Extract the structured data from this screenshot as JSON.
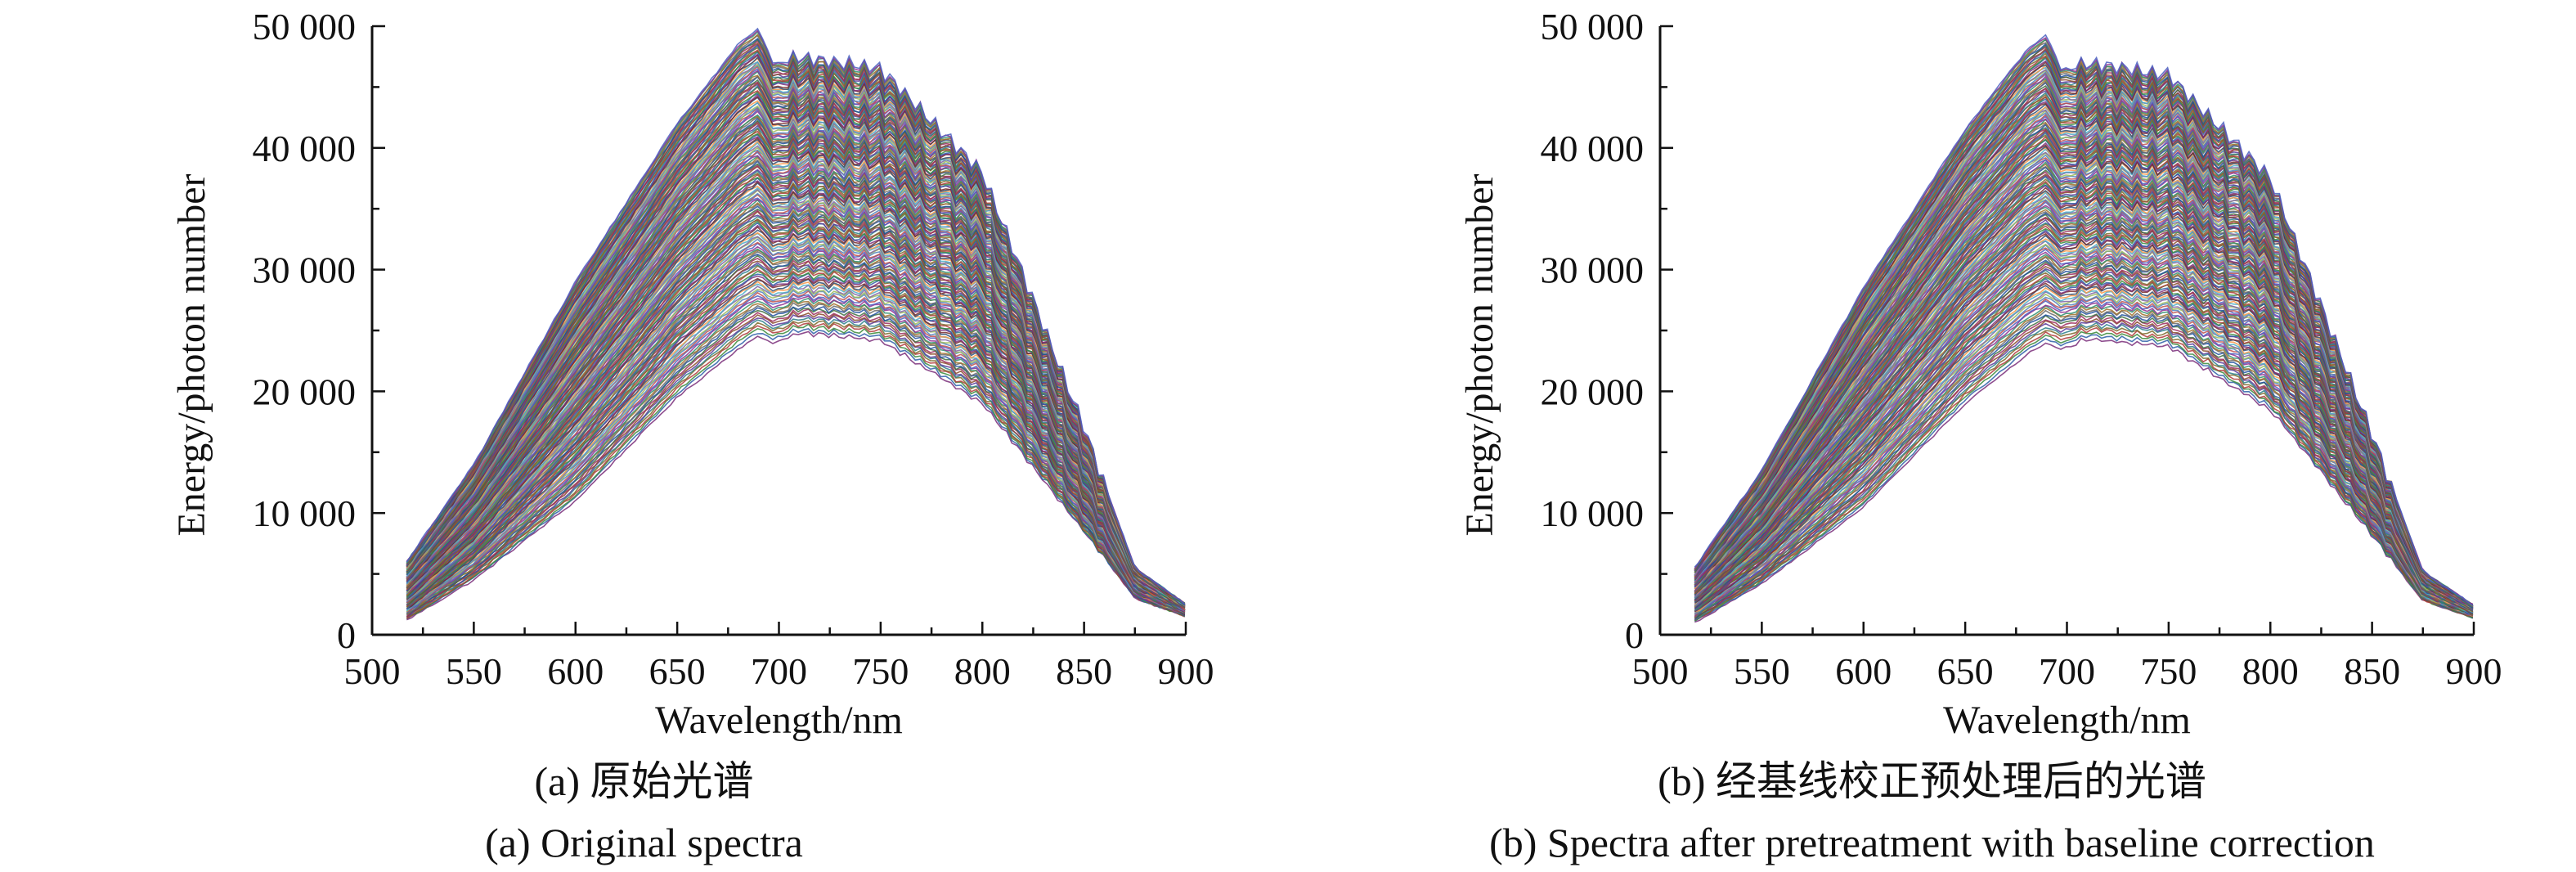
{
  "figure": {
    "panels": [
      {
        "caption_zh": "(a) 原始光谱",
        "caption_en": "(a) Original spectra"
      },
      {
        "caption_zh": "(b) 经基线校正预处理后的光谱",
        "caption_en": "(b) Spectra after pretreatment with baseline correction"
      }
    ]
  },
  "chart_data": [
    {
      "type": "line",
      "title": "(a) Original spectra",
      "xlabel": "Wavelength/nm",
      "ylabel": "Energy/photon number",
      "xlim": [
        500,
        900
      ],
      "ylim": [
        0,
        50000
      ],
      "xticks": [
        500,
        550,
        600,
        650,
        700,
        750,
        800,
        850,
        900
      ],
      "xtick_labels": [
        "500",
        "550",
        "600",
        "650",
        "700",
        "750",
        "800",
        "850",
        "900"
      ],
      "yticks": [
        0,
        10000,
        20000,
        30000,
        40000,
        50000
      ],
      "ytick_labels": [
        "0",
        "10 000",
        "20 000",
        "30 000",
        "40 000",
        "50 000"
      ],
      "grid": false,
      "legend": "none",
      "series_count_approx": 160,
      "envelope": {
        "x": [
          517,
          550,
          600,
          650,
          680,
          690,
          697,
          710,
          750,
          800,
          850,
          875,
          900
        ],
        "upper": [
          6000,
          14000,
          29000,
          42000,
          48500,
          49800,
          47000,
          47500,
          46500,
          38000,
          17000,
          5500,
          2500
        ],
        "lower": [
          1200,
          4500,
          11000,
          19500,
          23500,
          24500,
          24000,
          24800,
          24200,
          19000,
          8500,
          3000,
          1500
        ]
      },
      "series": [
        {
          "x": [
            517,
            550,
            600,
            650,
            680,
            690,
            697,
            710,
            750,
            800,
            850,
            875,
            900
          ],
          "y": [
            6000,
            14000,
            29000,
            42000,
            48500,
            49800,
            47000,
            47500,
            46500,
            38000,
            17000,
            5500,
            2500
          ]
        },
        {
          "x": [
            517,
            550,
            600,
            650,
            680,
            690,
            697,
            710,
            750,
            800,
            850,
            875,
            900
          ],
          "y": [
            3500,
            9500,
            21000,
            33000,
            39000,
            40500,
            38500,
            39000,
            38000,
            31000,
            14000,
            4500,
            2000
          ]
        },
        {
          "x": [
            517,
            550,
            600,
            650,
            680,
            690,
            697,
            710,
            750,
            800,
            850,
            875,
            900
          ],
          "y": [
            1200,
            4500,
            11000,
            19500,
            23500,
            24500,
            24000,
            24800,
            24200,
            19000,
            8500,
            3000,
            1500
          ]
        }
      ]
    },
    {
      "type": "line",
      "title": "(b) Spectra after pretreatment with baseline correction",
      "xlabel": "Wavelength/nm",
      "ylabel": "Energy/photon number",
      "xlim": [
        500,
        900
      ],
      "ylim": [
        0,
        50000
      ],
      "xticks": [
        500,
        550,
        600,
        650,
        700,
        750,
        800,
        850,
        900
      ],
      "xtick_labels": [
        "500",
        "550",
        "600",
        "650",
        "700",
        "750",
        "800",
        "850",
        "900"
      ],
      "yticks": [
        0,
        10000,
        20000,
        30000,
        40000,
        50000
      ],
      "ytick_labels": [
        "0",
        "10 000",
        "20 000",
        "30 000",
        "40 000",
        "50 000"
      ],
      "grid": false,
      "legend": "none",
      "series_count_approx": 160,
      "envelope": {
        "x": [
          517,
          550,
          600,
          650,
          680,
          690,
          697,
          710,
          750,
          800,
          850,
          875,
          900
        ],
        "upper": [
          5500,
          13500,
          28500,
          41500,
          48000,
          49300,
          46500,
          47000,
          46000,
          37500,
          16500,
          5200,
          2400
        ],
        "lower": [
          1000,
          4200,
          10500,
          19000,
          23000,
          24000,
          23500,
          24300,
          23700,
          18500,
          8200,
          2800,
          1400
        ]
      },
      "series": [
        {
          "x": [
            517,
            550,
            600,
            650,
            680,
            690,
            697,
            710,
            750,
            800,
            850,
            875,
            900
          ],
          "y": [
            5500,
            13500,
            28500,
            41500,
            48000,
            49300,
            46500,
            47000,
            46000,
            37500,
            16500,
            5200,
            2400
          ]
        },
        {
          "x": [
            517,
            550,
            600,
            650,
            680,
            690,
            697,
            710,
            750,
            800,
            850,
            875,
            900
          ],
          "y": [
            3200,
            9000,
            20500,
            32500,
            38500,
            40000,
            38000,
            38500,
            37500,
            30500,
            13500,
            4300,
            1900
          ]
        },
        {
          "x": [
            517,
            550,
            600,
            650,
            680,
            690,
            697,
            710,
            750,
            800,
            850,
            875,
            900
          ],
          "y": [
            1000,
            4200,
            10500,
            19000,
            23000,
            24000,
            23500,
            24300,
            23700,
            18500,
            8200,
            2800,
            1400
          ]
        }
      ]
    }
  ]
}
